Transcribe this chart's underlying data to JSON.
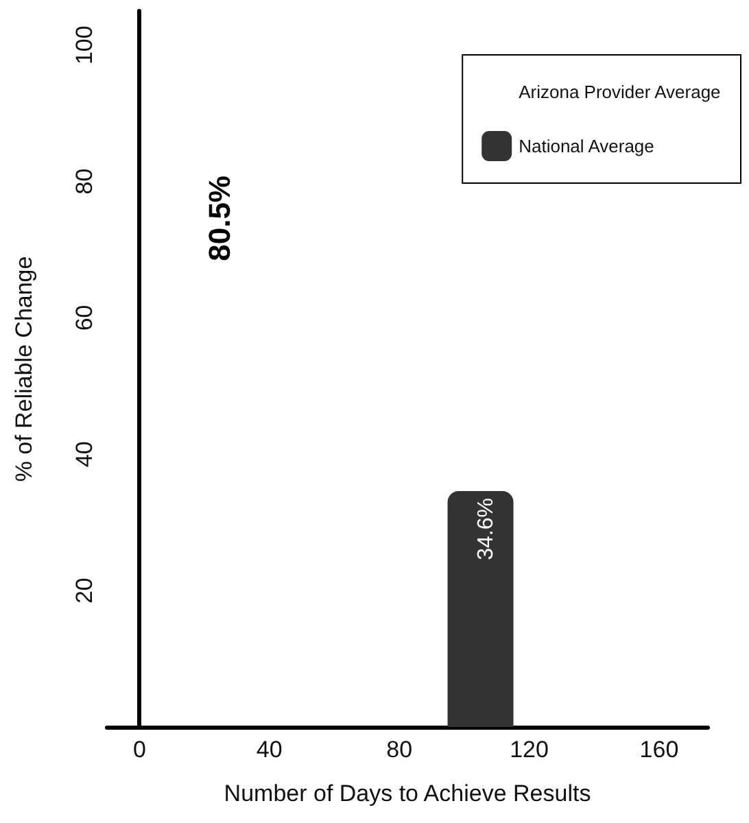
{
  "chart_data": {
    "type": "bar",
    "xlabel": "Number of Days to Achieve Results",
    "ylabel": "% of Reliable Change",
    "xlim": [
      -10,
      175
    ],
    "xticks": [
      0,
      40,
      80,
      120,
      160
    ],
    "ylim": [
      0,
      105
    ],
    "yticks": [
      20,
      40,
      60,
      80,
      100
    ],
    "series": [
      {
        "name": "Arizona Provider Average"
      },
      {
        "name": "National Average",
        "color": "#333333",
        "x": [
          105
        ],
        "values": [
          34.6
        ],
        "value_labels": [
          "34.6%"
        ]
      }
    ],
    "annotations": [
      "80.5%"
    ],
    "grid": false,
    "legend": "top right"
  }
}
